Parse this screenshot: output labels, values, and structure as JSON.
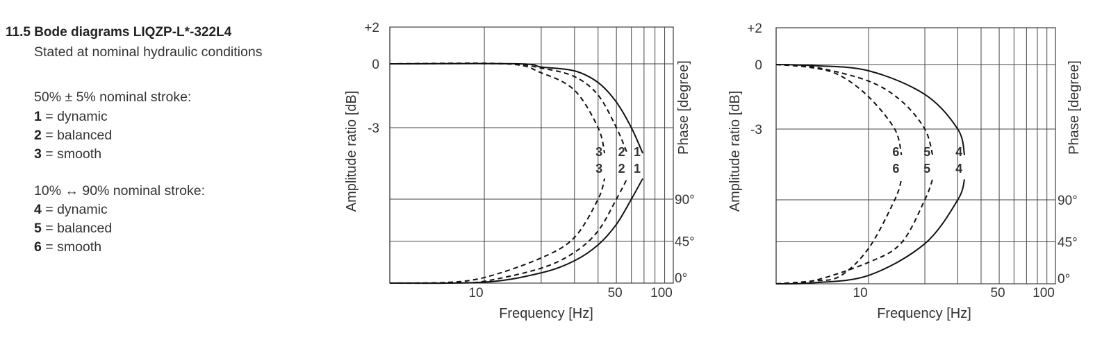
{
  "section": {
    "title": "11.5 Bode diagrams LIQZP-L*-322L4",
    "subtitle": "Stated at nominal hydraulic conditions",
    "group1": {
      "heading": "50% ± 5% nominal stroke:",
      "items": [
        {
          "num": "1",
          "text": "= dynamic"
        },
        {
          "num": "2",
          "text": "= balanced"
        },
        {
          "num": "3",
          "text": "= smooth"
        }
      ]
    },
    "group2": {
      "heading": "10% ↔ 90% nominal stroke:",
      "items": [
        {
          "num": "4",
          "text": "= dynamic"
        },
        {
          "num": "5",
          "text": "= balanced"
        },
        {
          "num": "6",
          "text": "= smooth"
        }
      ]
    }
  },
  "chart_data": [
    {
      "type": "line",
      "xlabel": "Frequency [Hz]",
      "ylabel": "Amplitude ratio  [dB]",
      "ylabel_right": "Phase [degree]",
      "x_scale": "log",
      "xlim": [
        3.16,
        100
      ],
      "x_ticks": [
        "10",
        "50",
        "100"
      ],
      "x_grid": [
        10,
        20,
        30,
        40,
        50,
        60,
        70,
        80,
        90,
        100
      ],
      "y_ticks": [
        "+2",
        "0",
        "-3"
      ],
      "y_tick_values": [
        2,
        0,
        -3
      ],
      "phase_ticks": [
        "90°",
        "45°",
        "0°"
      ],
      "phase_tick_values": [
        90,
        45,
        0
      ],
      "grid": true,
      "series": [
        {
          "label": "1",
          "style": "solid",
          "amplitude": [
            [
              3.16,
              0
            ],
            [
              15,
              0
            ],
            [
              20,
              -0.15
            ],
            [
              30,
              -0.33
            ],
            [
              40,
              -0.88
            ],
            [
              50,
              -1.8
            ],
            [
              60,
              -3
            ],
            [
              68.9,
              -4.2
            ]
          ],
          "phase": [
            [
              3.16,
              0
            ],
            [
              10,
              1
            ],
            [
              20,
              11
            ],
            [
              30,
              24
            ],
            [
              40,
              41
            ],
            [
              50,
              63
            ],
            [
              60,
              90
            ],
            [
              68.9,
              112
            ]
          ]
        },
        {
          "label": "2",
          "style": "dashed",
          "amplitude": [
            [
              3.16,
              0
            ],
            [
              13,
              0
            ],
            [
              20,
              -0.2
            ],
            [
              30,
              -0.6
            ],
            [
              40,
              -1.47
            ],
            [
              50,
              -3
            ],
            [
              57,
              -4.2
            ]
          ],
          "phase": [
            [
              3.16,
              0
            ],
            [
              7,
              0.5
            ],
            [
              10,
              2
            ],
            [
              20,
              16
            ],
            [
              30,
              33
            ],
            [
              40,
              56
            ],
            [
              50,
              90
            ],
            [
              57,
              112
            ]
          ]
        },
        {
          "label": "3",
          "style": "dashed",
          "amplitude": [
            [
              3.16,
              0
            ],
            [
              13,
              0
            ],
            [
              20,
              -0.42
            ],
            [
              30,
              -1.24
            ],
            [
              40,
              -3
            ],
            [
              43.3,
              -4.2
            ]
          ],
          "phase": [
            [
              3.16,
              0
            ],
            [
              6,
              0.5
            ],
            [
              10,
              6
            ],
            [
              20,
              27
            ],
            [
              30,
              49
            ],
            [
              40,
              90
            ],
            [
              43.3,
              112
            ]
          ]
        }
      ]
    },
    {
      "type": "line",
      "xlabel": "Frequency [Hz]",
      "ylabel": "Amplitude ratio [dB]",
      "ylabel_right": "Phase [degree]",
      "x_scale": "log",
      "xlim": [
        3.2,
        100
      ],
      "x_ticks": [
        "10",
        "50",
        "100"
      ],
      "x_grid": [
        10,
        20,
        30,
        40,
        50,
        60,
        70,
        80,
        90,
        100
      ],
      "y_ticks": [
        "+2",
        "0",
        "-3"
      ],
      "y_tick_values": [
        2,
        0,
        -3
      ],
      "phase_ticks": [
        "90°",
        "45°",
        "0°"
      ],
      "phase_tick_values": [
        90,
        45,
        0
      ],
      "grid": true,
      "series": [
        {
          "label": "4",
          "style": "solid",
          "amplitude": [
            [
              3.2,
              0
            ],
            [
              5,
              -0.05
            ],
            [
              10,
              -0.29
            ],
            [
              20,
              -1.39
            ],
            [
              30,
              -3
            ],
            [
              32.6,
              -4.2
            ]
          ],
          "phase": [
            [
              3.2,
              0
            ],
            [
              5,
              1
            ],
            [
              10,
              9
            ],
            [
              20,
              43
            ],
            [
              30,
              90
            ],
            [
              32.6,
              112
            ]
          ]
        },
        {
          "label": "5",
          "style": "dashed",
          "amplitude": [
            [
              3.2,
              0
            ],
            [
              5,
              -0.1
            ],
            [
              10,
              -0.77
            ],
            [
              15,
              -1.7
            ],
            [
              20,
              -3
            ],
            [
              22,
              -4.2
            ]
          ],
          "phase": [
            [
              3.2,
              0
            ],
            [
              5,
              3
            ],
            [
              10,
              23
            ],
            [
              15,
              44
            ],
            [
              20,
              90
            ],
            [
              22,
              112
            ]
          ]
        },
        {
          "label": "6",
          "style": "dashed",
          "amplitude": [
            [
              3.2,
              0
            ],
            [
              5,
              -0.15
            ],
            [
              7,
              -0.5
            ],
            [
              10,
              -1.5
            ],
            [
              13.8,
              -3
            ],
            [
              15,
              -4.2
            ]
          ],
          "phase": [
            [
              3.2,
              0
            ],
            [
              5,
              3
            ],
            [
              7,
              8
            ],
            [
              10,
              38
            ],
            [
              13.8,
              90
            ],
            [
              15,
              112
            ]
          ]
        }
      ]
    }
  ]
}
